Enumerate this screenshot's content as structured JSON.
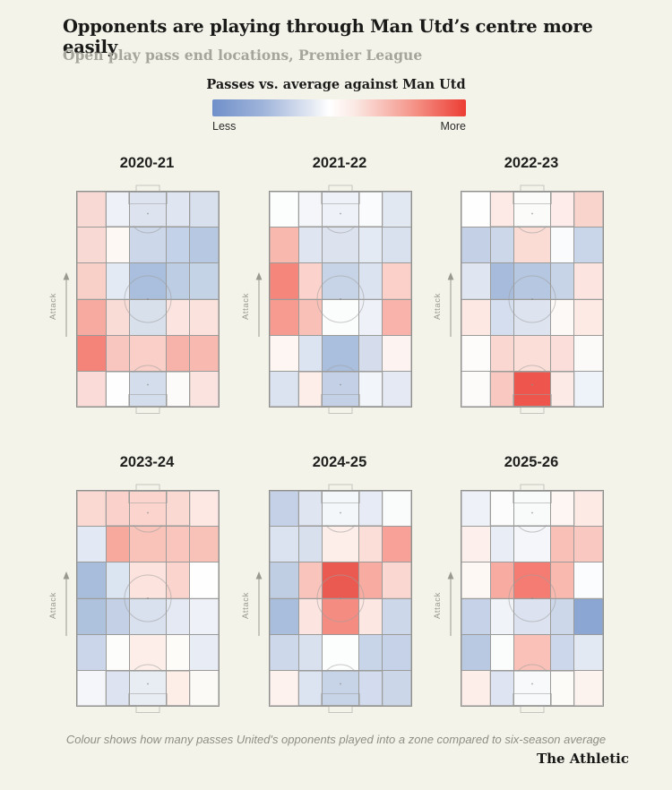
{
  "header": {
    "title": "Opponents are playing through Man Utd’s centre more easily",
    "subtitle": "Open play pass end locations, Premier League"
  },
  "legend": {
    "title": "Passes vs. average against Man Utd",
    "less_label": "Less",
    "more_label": "More",
    "less_color": "#7090ca",
    "neutral_color": "#ffffff",
    "more_color": "#ec3d33"
  },
  "attack_label": "Attack",
  "footer": {
    "caption": "Colour shows how many passes United's opponents played into a zone compared to six-season average",
    "credit": "The Athletic"
  },
  "chart_data": {
    "type": "heatmap",
    "title": "Opponents are playing through Man Utd’s centre more easily",
    "subtitle": "Open play pass end locations, Premier League",
    "legend_title": "Passes vs. average against Man Utd",
    "scale": {
      "type": "diverging",
      "left_label": "Less",
      "right_label": "More",
      "less_color": "#7090ca",
      "neutral_color": "#ffffff",
      "more_color": "#ec3d33"
    },
    "grid": {
      "columns": 5,
      "rows": 6,
      "col_widths_pct": [
        21,
        16,
        26,
        16,
        21
      ],
      "orientation": "vertical-pitch",
      "attack_direction": "up"
    },
    "note": "Cell values are shown only as diverging colours (blue = fewer passes than average, red = more); hex colours below are read from the graphic, row order top (attacking end) to bottom, column order left to right.",
    "panels": [
      {
        "season": "2020-21",
        "cell_colors": [
          [
            "#f9d9d3",
            "#eef1f7",
            "#dde4f0",
            "#dfe6f1",
            "#d8e0ee"
          ],
          [
            "#f9d9d3",
            "#fdf8f4",
            "#ccd8ea",
            "#c3d2e8",
            "#b6c8e2"
          ],
          [
            "#f9d0c8",
            "#e4eaf4",
            "#a9bfdd",
            "#bccde4",
            "#c5d3e7"
          ],
          [
            "#f7aba0",
            "#fadcd6",
            "#d8e0ec",
            "#fce4e0",
            "#fbe2dc"
          ],
          [
            "#f4837a",
            "#f9c6bf",
            "#f9cfc8",
            "#f7b3a9",
            "#f8b9b0"
          ],
          [
            "#fbdbd7",
            "#fefefe",
            "#d4ddeb",
            "#fdfbfa",
            "#fbe3df"
          ]
        ]
      },
      {
        "season": "2021-22",
        "cell_colors": [
          [
            "#fcfdfd",
            "#f4f6fa",
            "#eef2f8",
            "#fafbfc",
            "#e2e8f2"
          ],
          [
            "#f9b8ae",
            "#dfe5f1",
            "#dce3ef",
            "#e4eaf3",
            "#d9e1ee"
          ],
          [
            "#f4867c",
            "#fbd3cc",
            "#c7d4e7",
            "#dce3f0",
            "#fad0c9"
          ],
          [
            "#f79a8f",
            "#f9c0b7",
            "#fbfcfc",
            "#eef1f8",
            "#f9b3aa"
          ],
          [
            "#fdf6f2",
            "#dce3f1",
            "#aabfde",
            "#d5dded",
            "#fdf4f1"
          ],
          [
            "#dbe3f0",
            "#fdeee9",
            "#c3d0e6",
            "#f2f5fa",
            "#e4e9f3"
          ]
        ]
      },
      {
        "season": "2022-23",
        "cell_colors": [
          [
            "#fefefe",
            "#fdeae6",
            "#fbfbf9",
            "#fdece9",
            "#f9d4cd"
          ],
          [
            "#c3d0e6",
            "#ccd7ea",
            "#fbdcd5",
            "#fafbfc",
            "#c9d5e9"
          ],
          [
            "#dfe5f1",
            "#a7bcdc",
            "#b6c7e1",
            "#c7d3e7",
            "#fce4e0"
          ],
          [
            "#fde8e4",
            "#d5deee",
            "#dde4ef",
            "#fdf9f7",
            "#fdeae5"
          ],
          [
            "#fdfcfb",
            "#fad8d1",
            "#fbded8",
            "#fbdeda",
            "#fcfaf9"
          ],
          [
            "#fdfbfa",
            "#f9c8c0",
            "#ee554c",
            "#fceae7",
            "#eef2f9"
          ]
        ]
      },
      {
        "season": "2023-24",
        "cell_colors": [
          [
            "#fbd9d3",
            "#fad2cb",
            "#fad4cd",
            "#fbd9d3",
            "#fde8e4"
          ],
          [
            "#e3e9f4",
            "#f8a99e",
            "#f9c3ba",
            "#f9c5bc",
            "#f9c2b9"
          ],
          [
            "#a8bddc",
            "#dbe4f1",
            "#fce3de",
            "#fad4cd",
            "#fefefe"
          ],
          [
            "#aec2de",
            "#c3d0e6",
            "#d9e0ee",
            "#e4e9f4",
            "#eef1f8"
          ],
          [
            "#ccd6ea",
            "#fdfdfc",
            "#fdeee9",
            "#fdfcf8",
            "#e8edf5"
          ],
          [
            "#f4f6fa",
            "#dde3f0",
            "#e8edf4",
            "#fdeee8",
            "#fbfaf7"
          ]
        ]
      },
      {
        "season": "2024-25",
        "cell_colors": [
          [
            "#c4d1e6",
            "#dfe6f2",
            "#f4f7f9",
            "#e6ebf5",
            "#fafbfb"
          ],
          [
            "#dce3f0",
            "#d8e0ee",
            "#fdeee9",
            "#fbded8",
            "#f8a198"
          ],
          [
            "#c0cee4",
            "#f9c4bb",
            "#ea5a50",
            "#f8aca1",
            "#fbd7d1"
          ],
          [
            "#a9bedd",
            "#fce5e1",
            "#f58c82",
            "#fce7e3",
            "#ccd7ea"
          ],
          [
            "#cdd8ea",
            "#d9e1ef",
            "#fcfdfd",
            "#c8d4e8",
            "#c5d2e7"
          ],
          [
            "#fdf2ed",
            "#dce3f1",
            "#c7d3e7",
            "#d3dcee",
            "#cbd6e9"
          ]
        ]
      },
      {
        "season": "2025-26",
        "cell_colors": [
          [
            "#eef2f8",
            "#fbfcfb",
            "#f9fafa",
            "#fdf6f3",
            "#fdeae5"
          ],
          [
            "#fdefeb",
            "#e9edf5",
            "#f4f6f9",
            "#f9c0b7",
            "#f9c8c0"
          ],
          [
            "#fdf8f4",
            "#f8aba0",
            "#f47c72",
            "#f9b9af",
            "#fbfcfd"
          ],
          [
            "#c5d2e7",
            "#f0f3f8",
            "#dce2ef",
            "#ccd7ea",
            "#8ba6d2"
          ],
          [
            "#b9c9e2",
            "#fbfcfc",
            "#f9c1b8",
            "#ccd7eb",
            "#e3e9f3"
          ],
          [
            "#fdeee9",
            "#dee4f1",
            "#f7f9fa",
            "#fdfbf8",
            "#fdf3ee"
          ]
        ]
      }
    ]
  }
}
